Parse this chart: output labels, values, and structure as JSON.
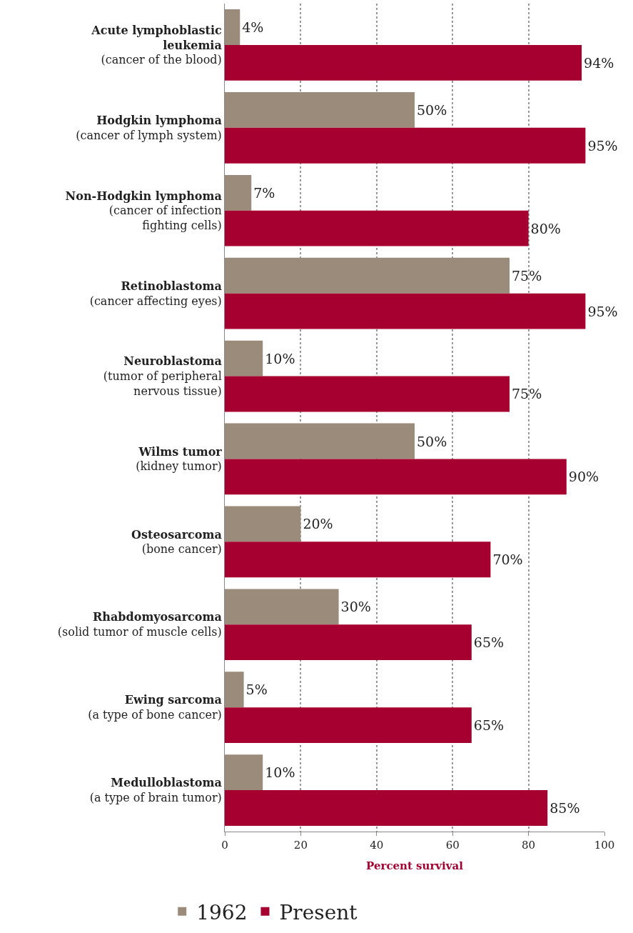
{
  "chart_data": {
    "type": "bar",
    "orientation": "horizontal",
    "xlabel": "Percent survival",
    "categories": [
      "Acute lymphoblastic\nleukemia\n(cancer of the blood)",
      "Hodgkin lymphoma\n(cancer of lymph system)",
      "Non-Hodgkin lymphoma\n(cancer of infection\nfighting cells)",
      "Retinoblastoma\n(cancer affecting eyes)",
      "Neuroblastoma\n(tumor of peripheral\nnervous tissue)",
      "Wilms tumor\n(kidney tumor)",
      "Osteosarcoma\n(bone cancer)",
      "Rhabdomyosarcoma\n(solid tumor of muscle cells)",
      "Ewing sarcoma\n(a type of bone cancer)",
      "Medulloblastoma\n(a type of brain tumor)"
    ],
    "series": [
      {
        "name": "1962",
        "color": "#9b8b7a",
        "values": [
          4,
          50,
          7,
          75,
          10,
          50,
          20,
          30,
          5,
          10
        ],
        "value_labels": [
          "4%",
          "50%",
          "7%",
          "75%",
          "10%",
          "50%",
          "20%",
          "30%",
          "5%",
          "10%"
        ]
      },
      {
        "name": "Present",
        "color": "#a5002f",
        "values": [
          94,
          95,
          80,
          95,
          75,
          90,
          70,
          65,
          65,
          85
        ],
        "value_labels": [
          "94%",
          "95%",
          "80%",
          "95%",
          "75%",
          "90%",
          "70%",
          "65%",
          "65%",
          "85%"
        ]
      }
    ],
    "xlim": [
      0,
      100
    ],
    "xticks": [
      0,
      20,
      40,
      60,
      80,
      100
    ],
    "grid": "x",
    "legend": "bottom left"
  }
}
